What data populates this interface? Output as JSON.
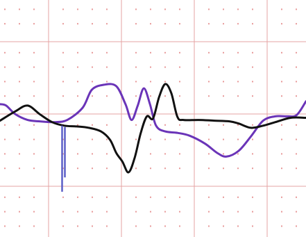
{
  "chart_data": {
    "type": "line",
    "title": "",
    "xlabel": "",
    "ylabel": "",
    "grid": true,
    "colors": {
      "background": "#ffffff",
      "major_grid": "#e6a3a3",
      "minor_dots": "#e89a9a",
      "series_black": "#111111",
      "series_purple": "#6a34b8",
      "marker_lines": "#5b5fc7"
    },
    "series": [
      {
        "color_key": "series_black",
        "points": [
          [
            0.0,
            -0.03
          ],
          [
            0.05,
            0.1
          ],
          [
            0.09,
            0.18
          ],
          [
            0.13,
            0.06
          ],
          [
            0.17,
            -0.05
          ],
          [
            0.21,
            -0.1
          ],
          [
            0.25,
            -0.11
          ],
          [
            0.29,
            -0.13
          ],
          [
            0.33,
            -0.18
          ],
          [
            0.36,
            -0.3
          ],
          [
            0.38,
            -0.48
          ],
          [
            0.4,
            -0.6
          ],
          [
            0.42,
            -0.75
          ],
          [
            0.44,
            -0.55
          ],
          [
            0.46,
            -0.2
          ],
          [
            0.48,
            0.03
          ],
          [
            0.5,
            0.0
          ],
          [
            0.52,
            0.3
          ],
          [
            0.54,
            0.48
          ],
          [
            0.56,
            0.35
          ],
          [
            0.58,
            0.02
          ],
          [
            0.6,
            -0.02
          ],
          [
            0.65,
            -0.02
          ],
          [
            0.7,
            -0.03
          ],
          [
            0.75,
            -0.04
          ],
          [
            0.78,
            -0.07
          ],
          [
            0.82,
            -0.13
          ],
          [
            0.86,
            -0.1
          ],
          [
            0.9,
            -0.05
          ],
          [
            0.95,
            0.01
          ],
          [
            1.0,
            0.01
          ]
        ]
      },
      {
        "color_key": "series_purple",
        "points": [
          [
            0.0,
            0.2
          ],
          [
            0.02,
            0.18
          ],
          [
            0.05,
            0.06
          ],
          [
            0.09,
            -0.02
          ],
          [
            0.13,
            -0.04
          ],
          [
            0.18,
            -0.05
          ],
          [
            0.22,
            -0.02
          ],
          [
            0.27,
            0.15
          ],
          [
            0.3,
            0.4
          ],
          [
            0.34,
            0.47
          ],
          [
            0.38,
            0.45
          ],
          [
            0.41,
            0.2
          ],
          [
            0.43,
            -0.02
          ],
          [
            0.45,
            0.18
          ],
          [
            0.47,
            0.42
          ],
          [
            0.49,
            0.2
          ],
          [
            0.51,
            -0.1
          ],
          [
            0.54,
            -0.18
          ],
          [
            0.58,
            -0.2
          ],
          [
            0.62,
            -0.24
          ],
          [
            0.67,
            -0.35
          ],
          [
            0.71,
            -0.48
          ],
          [
            0.74,
            -0.53
          ],
          [
            0.78,
            -0.45
          ],
          [
            0.82,
            -0.25
          ],
          [
            0.86,
            -0.03
          ],
          [
            0.9,
            0.03
          ],
          [
            0.94,
            0.03
          ],
          [
            0.97,
            0.05
          ],
          [
            1.0,
            0.24
          ]
        ]
      }
    ],
    "markers": [
      {
        "x": 0.203,
        "y_top": -0.1,
        "y_bottom": -1.02,
        "color_key": "marker_lines"
      },
      {
        "x": 0.212,
        "y_top": -0.12,
        "y_bottom": -0.82,
        "color_key": "marker_lines"
      }
    ],
    "xlim": [
      0,
      1
    ],
    "ylim": [
      -1.65,
      1.65
    ]
  }
}
